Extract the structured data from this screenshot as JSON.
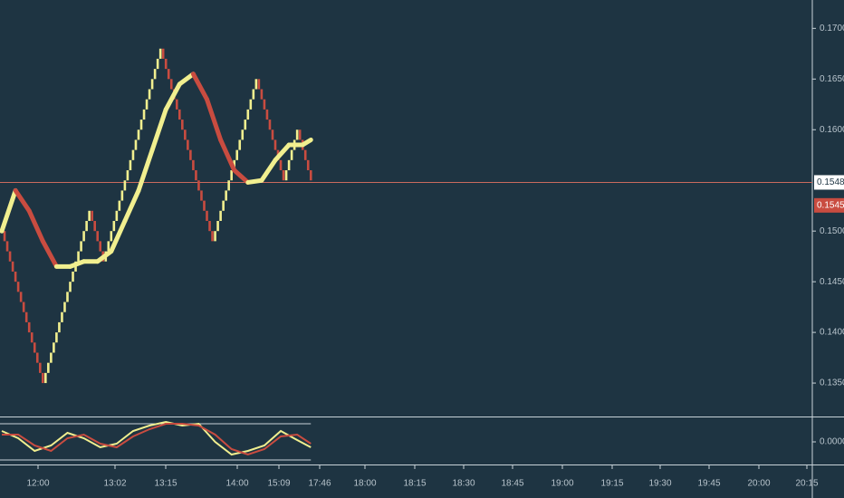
{
  "chart_data": {
    "type": "renko",
    "bricks": {
      "up_color": "#f1ef8f",
      "down_color": "#c94c40",
      "values": [
        0.15,
        0.149,
        0.148,
        0.147,
        0.146,
        0.145,
        0.144,
        0.143,
        0.142,
        0.141,
        0.14,
        0.139,
        0.138,
        0.137,
        0.136,
        0.135,
        0.136,
        0.137,
        0.138,
        0.139,
        0.14,
        0.141,
        0.142,
        0.143,
        0.144,
        0.145,
        0.146,
        0.147,
        0.148,
        0.149,
        0.15,
        0.151,
        0.152,
        0.151,
        0.15,
        0.149,
        0.148,
        0.147,
        0.148,
        0.149,
        0.15,
        0.151,
        0.152,
        0.153,
        0.154,
        0.155,
        0.156,
        0.157,
        0.158,
        0.159,
        0.16,
        0.161,
        0.162,
        0.163,
        0.164,
        0.165,
        0.166,
        0.167,
        0.168,
        0.167,
        0.166,
        0.165,
        0.164,
        0.163,
        0.162,
        0.161,
        0.16,
        0.159,
        0.158,
        0.157,
        0.156,
        0.155,
        0.154,
        0.153,
        0.152,
        0.151,
        0.15,
        0.149,
        0.15,
        0.151,
        0.152,
        0.153,
        0.154,
        0.155,
        0.156,
        0.157,
        0.158,
        0.159,
        0.16,
        0.161,
        0.162,
        0.163,
        0.164,
        0.165,
        0.164,
        0.163,
        0.162,
        0.161,
        0.16,
        0.159,
        0.158,
        0.157,
        0.156,
        0.155,
        0.156,
        0.157,
        0.158,
        0.159,
        0.16,
        0.159,
        0.158,
        0.157,
        0.156,
        0.155
      ]
    },
    "ma": {
      "x": [
        0,
        5,
        10,
        15,
        20,
        25,
        30,
        35,
        40,
        45,
        50,
        55,
        60,
        65,
        70,
        75,
        80,
        85,
        90,
        95,
        100,
        105,
        110,
        113
      ],
      "values": [
        0.15,
        0.154,
        0.152,
        0.149,
        0.1465,
        0.1465,
        0.147,
        0.147,
        0.148,
        0.151,
        0.154,
        0.158,
        0.162,
        0.1645,
        0.1655,
        0.163,
        0.159,
        0.156,
        0.1548,
        0.155,
        0.157,
        0.1585,
        0.1585,
        0.159
      ]
    },
    "ylim": [
      0.1317,
      0.1728
    ],
    "yticks": [
      {
        "value": 0.135,
        "label": "0.1350"
      },
      {
        "value": 0.14,
        "label": "0.1400"
      },
      {
        "value": 0.145,
        "label": "0.1450"
      },
      {
        "value": 0.15,
        "label": "0.1500"
      },
      {
        "value": 0.16,
        "label": "0.1600"
      },
      {
        "value": 0.165,
        "label": "0.1650"
      },
      {
        "value": 0.17,
        "label": "0.1700"
      }
    ],
    "last_price": {
      "value": 0.1548,
      "label": "0.1548"
    },
    "current_price": {
      "value": 0.1545,
      "label": "0.1545"
    },
    "x_labels": [
      "12:00",
      "13:02",
      "13:15",
      "14:00",
      "15:09",
      "17:46",
      "18:00",
      "18:15",
      "18:30",
      "18:45",
      "19:00",
      "19:15",
      "19:30",
      "19:45",
      "20:00",
      "20:15"
    ],
    "oscillator": {
      "x": [
        0,
        6,
        12,
        18,
        24,
        30,
        36,
        42,
        48,
        54,
        60,
        66,
        72,
        78,
        84,
        90,
        96,
        102,
        108,
        113
      ],
      "series": [
        {
          "color": "#f1ef8f",
          "values": [
            0.6,
            0.2,
            -0.5,
            -0.2,
            0.5,
            0.2,
            -0.3,
            -0.1,
            0.6,
            0.9,
            1.1,
            0.9,
            1.0,
            0.0,
            -0.7,
            -0.5,
            -0.2,
            0.6,
            0.1,
            -0.3
          ]
        },
        {
          "color": "#c94c40",
          "values": [
            0.4,
            0.4,
            -0.2,
            -0.5,
            0.2,
            0.4,
            -0.1,
            -0.3,
            0.3,
            0.7,
            1.0,
            1.0,
            0.9,
            0.4,
            -0.4,
            -0.7,
            -0.4,
            0.3,
            0.4,
            -0.1
          ]
        }
      ],
      "ylim": [
        -1.3,
        1.3
      ],
      "yticks": [
        {
          "value": 0,
          "label": "0.0000"
        }
      ],
      "levels": [
        1,
        -1
      ]
    }
  }
}
